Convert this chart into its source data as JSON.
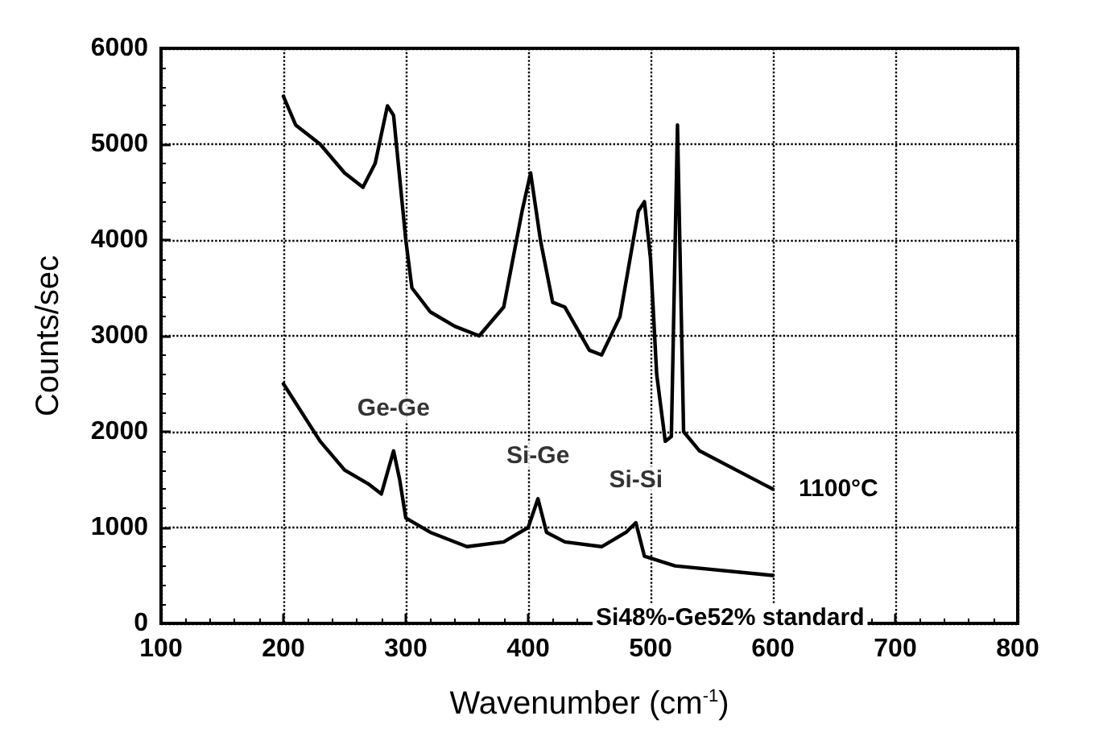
{
  "chart_data": {
    "type": "line",
    "xlabel": "Wavenumber (cm$^{-1}$)",
    "ylabel": "Counts/sec",
    "xlim": [
      100,
      800
    ],
    "ylim": [
      0,
      6000
    ],
    "xticks": [
      100,
      200,
      300,
      400,
      500,
      600,
      700,
      800
    ],
    "yticks": [
      0,
      1000,
      2000,
      3000,
      4000,
      5000,
      6000
    ],
    "grid": true,
    "line_style": "solid",
    "marker": "none",
    "series": [
      {
        "name": "1100°C",
        "color": "#000000",
        "x": [
          200,
          210,
          230,
          250,
          265,
          275,
          285,
          290,
          300,
          305,
          320,
          340,
          360,
          380,
          395,
          402,
          410,
          420,
          430,
          450,
          460,
          475,
          490,
          495,
          500,
          505,
          512,
          517,
          522,
          527,
          540,
          570,
          600
        ],
        "values": [
          5500,
          5200,
          5000,
          4700,
          4550,
          4800,
          5400,
          5300,
          4000,
          3500,
          3250,
          3100,
          3000,
          3300,
          4300,
          4700,
          4000,
          3350,
          3300,
          2850,
          2800,
          3200,
          4300,
          4400,
          3800,
          2600,
          1900,
          1950,
          5200,
          2000,
          1800,
          1600,
          1400
        ]
      },
      {
        "name": "Si48%-Ge52% standard",
        "color": "#000000",
        "x": [
          200,
          210,
          230,
          250,
          270,
          280,
          290,
          295,
          300,
          320,
          350,
          380,
          400,
          408,
          415,
          430,
          460,
          480,
          488,
          495,
          520,
          600
        ],
        "values": [
          2500,
          2300,
          1900,
          1600,
          1450,
          1350,
          1800,
          1500,
          1100,
          950,
          800,
          850,
          1000,
          1300,
          950,
          850,
          800,
          950,
          1050,
          700,
          600,
          500
        ]
      }
    ],
    "annotations": [
      {
        "text": "Ge-Ge",
        "x": 290,
        "y": 1800
      },
      {
        "text": "Si-Ge",
        "x": 408,
        "y": 1300
      },
      {
        "text": "Si-Si",
        "x": 488,
        "y": 1050
      }
    ]
  }
}
